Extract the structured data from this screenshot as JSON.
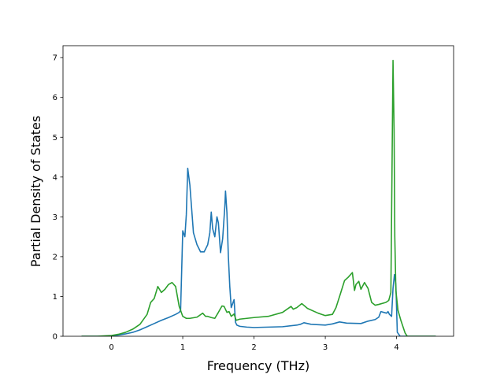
{
  "chart_data": {
    "type": "line",
    "title": "",
    "xlabel": "Frequency (THz)",
    "ylabel": "Partial Density of States",
    "xlim": [
      -0.68,
      4.8
    ],
    "ylim": [
      0,
      7.3
    ],
    "xticks": [
      0,
      1,
      2,
      3,
      4
    ],
    "yticks": [
      0,
      1,
      2,
      3,
      4,
      5,
      6,
      7
    ],
    "grid": false,
    "legend": "none",
    "series": [
      {
        "color": "#1f77b4",
        "x": [
          -0.42,
          -0.2,
          0.0,
          0.1,
          0.2,
          0.3,
          0.4,
          0.5,
          0.6,
          0.7,
          0.8,
          0.9,
          0.95,
          0.97,
          1.0,
          1.03,
          1.05,
          1.07,
          1.1,
          1.15,
          1.2,
          1.25,
          1.3,
          1.35,
          1.38,
          1.4,
          1.42,
          1.45,
          1.48,
          1.5,
          1.53,
          1.56,
          1.59,
          1.6,
          1.62,
          1.64,
          1.66,
          1.68,
          1.7,
          1.72,
          1.74,
          1.76,
          1.8,
          1.9,
          2.0,
          2.2,
          2.4,
          2.6,
          2.65,
          2.7,
          2.8,
          3.0,
          3.1,
          3.2,
          3.3,
          3.5,
          3.6,
          3.7,
          3.75,
          3.78,
          3.82,
          3.86,
          3.88,
          3.9,
          3.93,
          3.95,
          3.97,
          3.99,
          4.01,
          4.05,
          4.15,
          4.3,
          4.55
        ],
        "y": [
          0.0,
          0.0,
          0.01,
          0.03,
          0.06,
          0.1,
          0.16,
          0.24,
          0.32,
          0.4,
          0.47,
          0.55,
          0.6,
          0.65,
          2.65,
          2.5,
          3.05,
          4.22,
          3.8,
          2.6,
          2.3,
          2.12,
          2.12,
          2.3,
          2.6,
          3.12,
          2.7,
          2.5,
          3.0,
          2.85,
          2.1,
          2.45,
          3.25,
          3.65,
          3.1,
          2.0,
          1.25,
          0.72,
          0.82,
          0.92,
          0.35,
          0.28,
          0.25,
          0.23,
          0.22,
          0.23,
          0.24,
          0.28,
          0.3,
          0.34,
          0.3,
          0.28,
          0.31,
          0.36,
          0.33,
          0.32,
          0.38,
          0.42,
          0.48,
          0.62,
          0.6,
          0.58,
          0.62,
          0.55,
          0.5,
          1.2,
          1.55,
          1.3,
          0.1,
          0.0,
          0.0,
          0.0,
          0.0
        ]
      },
      {
        "color": "#2ca02c",
        "x": [
          -0.42,
          -0.2,
          0.0,
          0.1,
          0.2,
          0.3,
          0.4,
          0.5,
          0.55,
          0.6,
          0.65,
          0.7,
          0.75,
          0.8,
          0.85,
          0.9,
          0.95,
          1.0,
          1.05,
          1.1,
          1.2,
          1.28,
          1.32,
          1.35,
          1.4,
          1.45,
          1.5,
          1.55,
          1.58,
          1.62,
          1.65,
          1.68,
          1.72,
          1.75,
          1.8,
          1.9,
          2.0,
          2.2,
          2.4,
          2.52,
          2.55,
          2.6,
          2.67,
          2.75,
          2.9,
          2.95,
          3.0,
          3.1,
          3.15,
          3.2,
          3.27,
          3.32,
          3.38,
          3.41,
          3.43,
          3.47,
          3.5,
          3.55,
          3.6,
          3.65,
          3.7,
          3.75,
          3.85,
          3.89,
          3.92,
          3.935,
          3.95,
          3.965,
          3.975,
          3.99,
          4.02,
          4.06,
          4.12,
          4.15,
          4.2,
          4.3,
          4.55
        ],
        "y": [
          0.0,
          0.0,
          0.02,
          0.05,
          0.1,
          0.18,
          0.3,
          0.55,
          0.85,
          0.95,
          1.25,
          1.1,
          1.18,
          1.3,
          1.35,
          1.25,
          0.75,
          0.5,
          0.45,
          0.45,
          0.48,
          0.58,
          0.5,
          0.5,
          0.47,
          0.45,
          0.6,
          0.76,
          0.75,
          0.6,
          0.62,
          0.5,
          0.56,
          0.4,
          0.43,
          0.45,
          0.47,
          0.5,
          0.6,
          0.75,
          0.68,
          0.72,
          0.82,
          0.7,
          0.58,
          0.55,
          0.52,
          0.55,
          0.72,
          1.0,
          1.4,
          1.48,
          1.6,
          1.15,
          1.3,
          1.38,
          1.18,
          1.35,
          1.2,
          0.85,
          0.78,
          0.8,
          0.85,
          0.9,
          1.1,
          4.0,
          6.93,
          5.2,
          2.5,
          1.15,
          0.65,
          0.4,
          0.08,
          0.0,
          0.0,
          0.0,
          0.0
        ]
      }
    ]
  }
}
